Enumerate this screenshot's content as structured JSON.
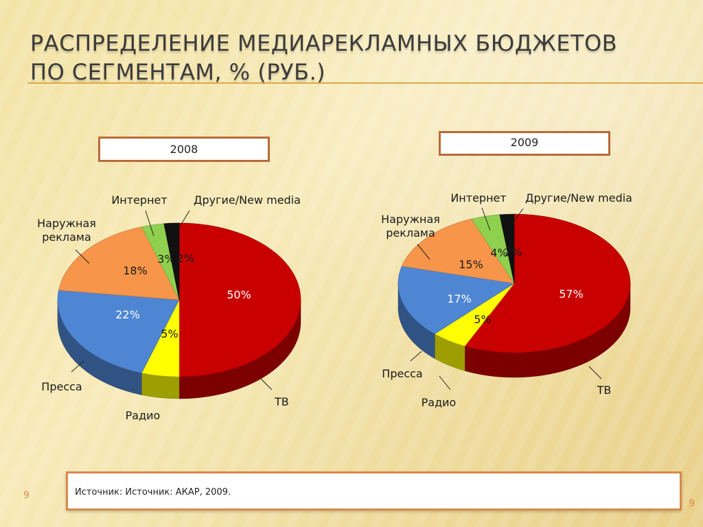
{
  "slide": {
    "title": "Распределение  медиарекламных бюджетов по сегментам, % (руб.)",
    "source": "Источник: Источник:  АКАР, 2009.",
    "page_number": "9"
  },
  "colors": {
    "tv": "#c80000",
    "radio": "#ffff00",
    "press": "#4f86d4",
    "outdoor": "#f7964a",
    "internet": "#8fd14f",
    "other": "#111111"
  },
  "chart_data": [
    {
      "type": "pie",
      "title": "2008",
      "categories": [
        "ТВ",
        "Радио",
        "Пресса",
        "Наружная реклама",
        "Интернет",
        "Другие/New media"
      ],
      "values": [
        50,
        5,
        22,
        18,
        3,
        2
      ],
      "data_labels": [
        "50%",
        "5%",
        "22%",
        "18%",
        "3%",
        "2%"
      ]
    },
    {
      "type": "pie",
      "title": "2009",
      "categories": [
        "ТВ",
        "Радио",
        "Пресса",
        "Наружная реклама",
        "Интернет",
        "Другие/New media"
      ],
      "values": [
        57,
        5,
        17,
        15,
        4,
        2
      ],
      "data_labels": [
        "57%",
        "5%",
        "17%",
        "15%",
        "4%",
        "2%"
      ]
    }
  ]
}
